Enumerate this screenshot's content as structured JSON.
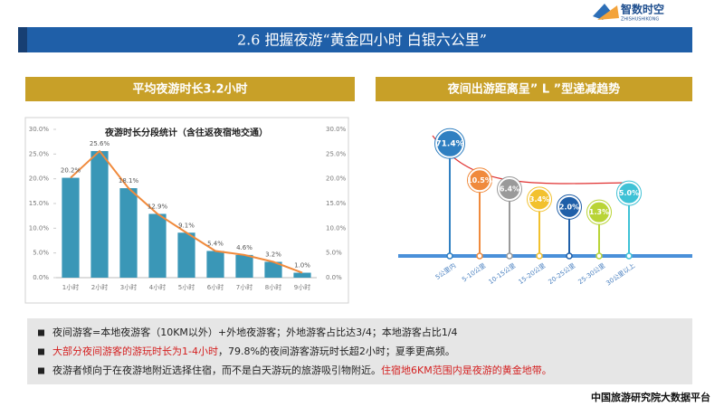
{
  "header": {
    "title": "2.6 把握夜游“黄金四小时 白银六公里”"
  },
  "logo": {
    "name": "智数时空",
    "subtitle": "ZHISHUSHIKONG"
  },
  "chart_data": [
    {
      "type": "bar",
      "heading": "平均夜游时长3.2小时",
      "title": "夜游时长分段统计（含往返夜宿地交通）",
      "categories": [
        "1小时",
        "2小时",
        "3小时",
        "4小时",
        "5小时",
        "6小时",
        "7小时",
        "8小时",
        "9小时"
      ],
      "values": [
        20.2,
        25.6,
        18.1,
        12.9,
        9.1,
        5.4,
        4.6,
        3.2,
        1.0
      ],
      "value_labels": [
        "20.2%",
        "25.6%",
        "18.1%",
        "12.9%",
        "9.1%",
        "5.4%",
        "4.6%",
        "3.2%",
        "1.0%"
      ],
      "color": "#3a97b7",
      "line_color": "#f08a3c",
      "right_axis": true,
      "ylim": [
        0,
        30
      ],
      "yticks": [
        {
          "value": 0,
          "label": "0.0%"
        },
        {
          "value": 5,
          "label": "5.0%"
        },
        {
          "value": 10,
          "label": "10.0%"
        },
        {
          "value": 15,
          "label": "15.0%"
        },
        {
          "value": 20,
          "label": "20.0%"
        },
        {
          "value": 25,
          "label": "25.0%"
        },
        {
          "value": 30,
          "label": "30.0%"
        }
      ]
    },
    {
      "type": "pin",
      "heading": "夜间出游距离呈” L ”型递减趋势",
      "categories": [
        "5公里内",
        "5-10公里",
        "10-15公里",
        "15-20公里",
        "20-25公里",
        "25-30公里",
        "30公里以上"
      ],
      "values": [
        71.4,
        10.5,
        6.4,
        3.4,
        2.0,
        1.3,
        5.0
      ],
      "value_labels": [
        "71.4%",
        "10.5%",
        "6.4%",
        "3.4%",
        "2.0%",
        "1.3%",
        "5.0%"
      ],
      "colors": [
        "#2f7fc1",
        "#f08a3c",
        "#9a9a9a",
        "#f2c12e",
        "#1f5fa8",
        "#b9d437",
        "#3fc2d6"
      ],
      "scale": "log"
    }
  ],
  "notes": [
    [
      {
        "text": "夜间游客=本地夜游客（10KM以外）+外地夜游客；外地游客占比达3/4；本地游客占比1/4",
        "color": "#222222"
      }
    ],
    [
      {
        "text": "大部分夜间游客的游玩时长为1-4小时",
        "color": "#d42020"
      },
      {
        "text": "，79.8%的夜间游客游玩时长超2小时；夏季更高频。",
        "color": "#222222"
      }
    ],
    [
      {
        "text": "夜游者倾向于在夜游地附近选择住宿，而不是白天游玩的旅游吸引物附近。",
        "color": "#222222"
      },
      {
        "text": "住宿地6KM范围内是夜游的黄金地带。",
        "color": "#d42020"
      }
    ]
  ],
  "footer": {
    "text": "中国旅游研究院大数据平台"
  }
}
